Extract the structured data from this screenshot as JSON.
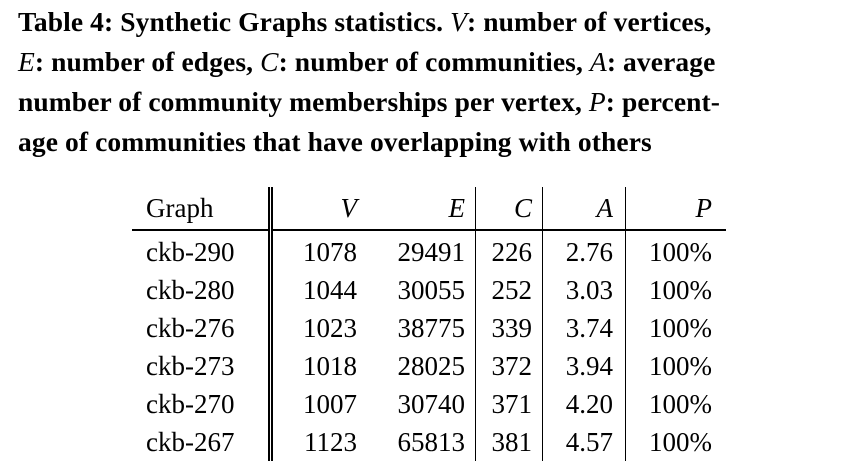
{
  "caption": {
    "line1_label": "Table 4:",
    "line1_rest_a": " Synthetic Graphs statistics. ",
    "sym_v": "V",
    "line1_rest_b": ": number of vertices,",
    "sym_e": "E",
    "line2_rest_a": ": number of edges, ",
    "sym_c": "C",
    "line2_rest_b": ": number of communities, ",
    "sym_a": "A",
    "line2_rest_c": ": average",
    "line3_rest_a": "number of community memberships per vertex, ",
    "sym_p": "P",
    "line3_rest_b": ": percent-",
    "line4": "age of communities that have overlapping with others"
  },
  "table": {
    "headers": {
      "graph": "Graph",
      "v": "V",
      "e": "E",
      "c": "C",
      "a": "A",
      "p": "P"
    },
    "rows": [
      {
        "graph": "ckb-290",
        "v": "1078",
        "e": "29491",
        "c": "226",
        "a": "2.76",
        "p": "100%"
      },
      {
        "graph": "ckb-280",
        "v": "1044",
        "e": "30055",
        "c": "252",
        "a": "3.03",
        "p": "100%"
      },
      {
        "graph": "ckb-276",
        "v": "1023",
        "e": "38775",
        "c": "339",
        "a": "3.74",
        "p": "100%"
      },
      {
        "graph": "ckb-273",
        "v": "1018",
        "e": "28025",
        "c": "372",
        "a": "3.94",
        "p": "100%"
      },
      {
        "graph": "ckb-270",
        "v": "1007",
        "e": "30740",
        "c": "371",
        "a": "4.20",
        "p": "100%"
      },
      {
        "graph": "ckb-267",
        "v": "1123",
        "e": "65813",
        "c": "381",
        "a": "4.57",
        "p": "100%"
      }
    ]
  }
}
